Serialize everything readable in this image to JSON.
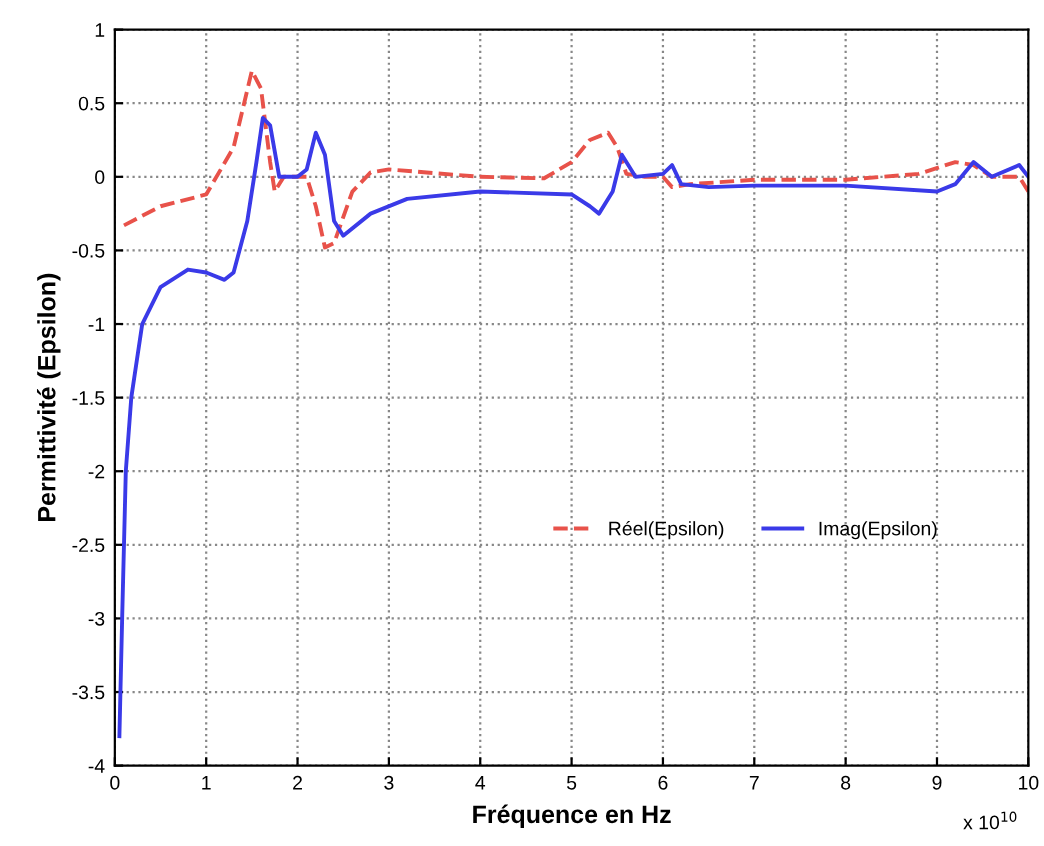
{
  "chart_data": {
    "type": "line",
    "xlabel": "Fréquence en Hz",
    "ylabel": "Permittivité (Epsilon)",
    "annotations": [
      "x 10$^{10}$"
    ],
    "xlim": [
      0,
      10
    ],
    "xticks": [
      0,
      1,
      2,
      3,
      4,
      5,
      6,
      7,
      8,
      9,
      10
    ],
    "ylim": [
      -4,
      1
    ],
    "yticks": [
      -4,
      -3.5,
      -3,
      -2.5,
      -2,
      -1.5,
      -1,
      -0.5,
      0,
      0.5,
      1
    ],
    "grid": true,
    "legend": "right",
    "marker": "none",
    "series": [
      {
        "name": "Réel(Epsilon)",
        "color": "#e8524a",
        "line_style": "dashed",
        "x": [
          0.1,
          0.5,
          1,
          1.3,
          1.5,
          1.6,
          1.7,
          1.75,
          1.85,
          2.0,
          2.1,
          2.2,
          2.3,
          2.4,
          2.6,
          2.8,
          3,
          4,
          4.7,
          5,
          5.2,
          5.4,
          5.5,
          5.6,
          5.8,
          6.0,
          6.1,
          6.3,
          7,
          8,
          8.8,
          9.2,
          9.4,
          9.6,
          9.9,
          10
        ],
        "values": [
          -0.33,
          -0.2,
          -0.12,
          0.2,
          0.72,
          0.6,
          0.1,
          -0.1,
          0,
          0,
          0,
          -0.2,
          -0.48,
          -0.45,
          -0.1,
          0.03,
          0.05,
          0,
          -0.01,
          0.1,
          0.25,
          0.3,
          0.2,
          0.02,
          0,
          0,
          -0.07,
          -0.05,
          -0.02,
          -0.02,
          0.02,
          0.1,
          0.08,
          0,
          0,
          -0.1
        ]
      },
      {
        "name": "Imag(Epsilon)",
        "color": "#3a3ae8",
        "line_style": "solid",
        "x": [
          0.05,
          0.08,
          0.12,
          0.18,
          0.3,
          0.5,
          0.8,
          1.0,
          1.2,
          1.3,
          1.45,
          1.55,
          1.62,
          1.7,
          1.8,
          2.0,
          2.1,
          2.2,
          2.3,
          2.4,
          2.5,
          2.8,
          3.2,
          4,
          5,
          5.2,
          5.3,
          5.45,
          5.55,
          5.7,
          6.0,
          6.1,
          6.2,
          6.5,
          7,
          8,
          9,
          9.2,
          9.4,
          9.6,
          9.9,
          10
        ],
        "values": [
          -3.8,
          -3,
          -2,
          -1.5,
          -1.0,
          -0.75,
          -0.63,
          -0.65,
          -0.7,
          -0.65,
          -0.3,
          0.1,
          0.4,
          0.35,
          0,
          0,
          0.05,
          0.3,
          0.15,
          -0.3,
          -0.4,
          -0.25,
          -0.15,
          -0.1,
          -0.12,
          -0.2,
          -0.25,
          -0.1,
          0.15,
          0,
          0.02,
          0.08,
          -0.05,
          -0.07,
          -0.06,
          -0.06,
          -0.1,
          -0.05,
          0.1,
          0,
          0.08,
          0
        ]
      }
    ]
  }
}
